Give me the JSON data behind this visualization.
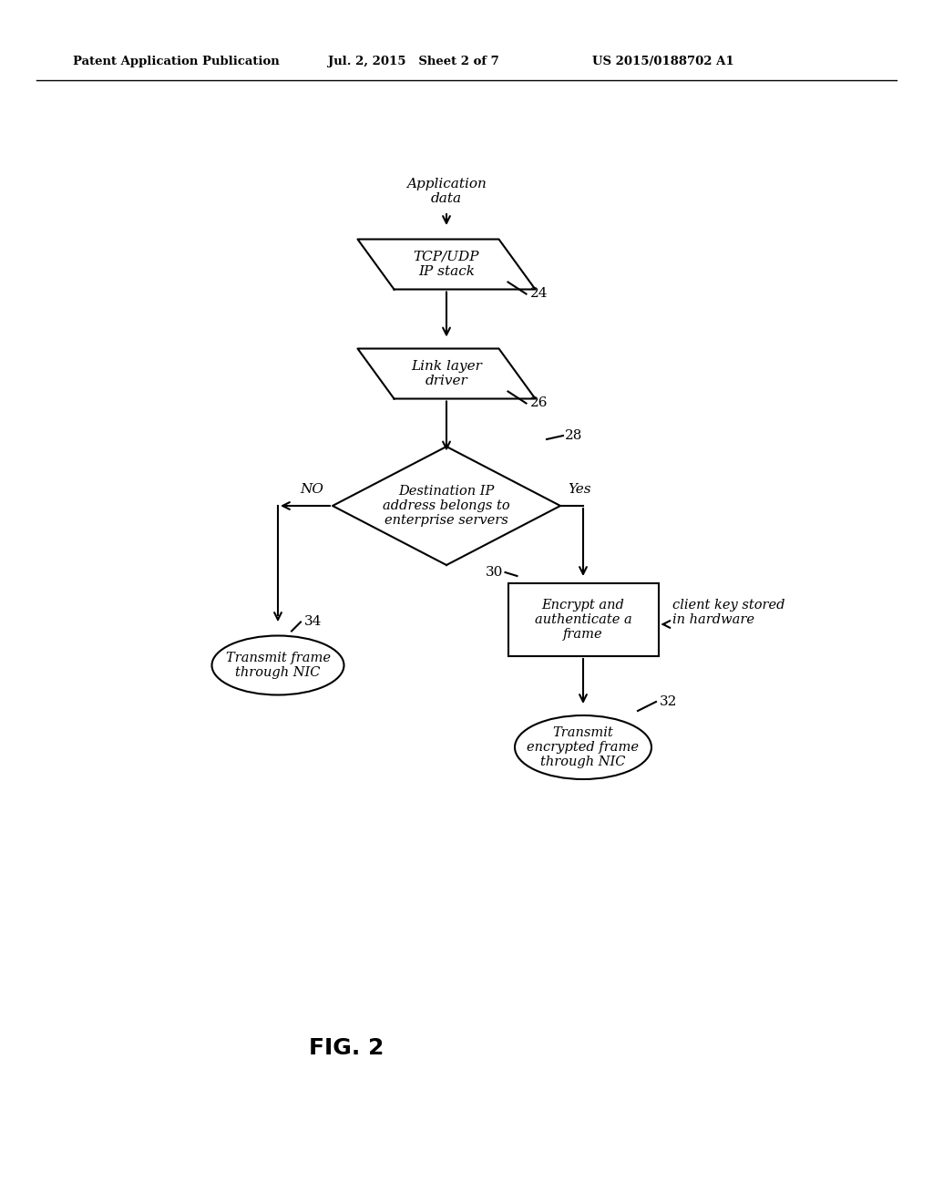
{
  "bg_color": "#ffffff",
  "header_left": "Patent Application Publication",
  "header_mid": "Jul. 2, 2015   Sheet 2 of 7",
  "header_right": "US 2015/0188702 A1",
  "fig_label": "FIG. 2",
  "app_data_text": "Application\ndata",
  "tcp_text": "TCP/UDP\nIP stack",
  "tcp_label": "24",
  "link_text": "Link layer\ndriver",
  "link_label": "26",
  "diamond_text": "Destination IP\naddress belongs to\nenterprise servers",
  "diamond_label": "28",
  "encrypt_text": "Encrypt and\nauthenticate a\nframe",
  "encrypt_label": "30",
  "hw_text": "client key stored\nin hardware",
  "transmit_enc_text": "Transmit\nencrypted frame\nthrough NIC",
  "transmit_enc_label": "32",
  "transmit_nic_text": "Transmit frame\nthrough NIC",
  "transmit_nic_label": "34",
  "no_text": "NO",
  "yes_text": "Yes"
}
